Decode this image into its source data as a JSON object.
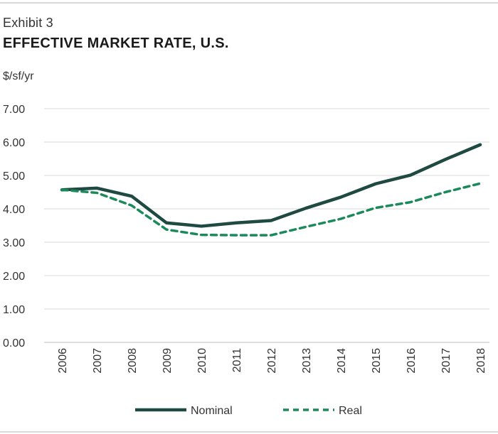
{
  "header": {
    "exhibit": "Exhibit 3",
    "title": "EFFECTIVE MARKET RATE, U.S."
  },
  "chart_data": {
    "type": "line",
    "title": "EFFECTIVE MARKET RATE, U.S.",
    "ylabel": "$/sf/yr",
    "xlabel": "",
    "ylim": [
      0,
      7
    ],
    "yticks": [
      "0.00",
      "1.00",
      "2.00",
      "3.00",
      "4.00",
      "5.00",
      "6.00",
      "7.00"
    ],
    "categories": [
      "2006",
      "2007",
      "2008",
      "2009",
      "2010",
      "2011",
      "2012",
      "2013",
      "2014",
      "2015",
      "2016",
      "2017",
      "2018"
    ],
    "grid": true,
    "legend_position": "bottom-center",
    "series": [
      {
        "name": "Nominal",
        "style": "solid",
        "color": "#1f4a41",
        "values": [
          4.57,
          4.62,
          4.38,
          3.58,
          3.48,
          3.58,
          3.65,
          4.02,
          4.35,
          4.75,
          5.01,
          5.48,
          5.92
        ]
      },
      {
        "name": "Real",
        "style": "dashed",
        "color": "#1a8a5a",
        "values": [
          4.57,
          4.48,
          4.1,
          3.38,
          3.22,
          3.21,
          3.21,
          3.46,
          3.7,
          4.03,
          4.2,
          4.5,
          4.76
        ]
      }
    ]
  }
}
